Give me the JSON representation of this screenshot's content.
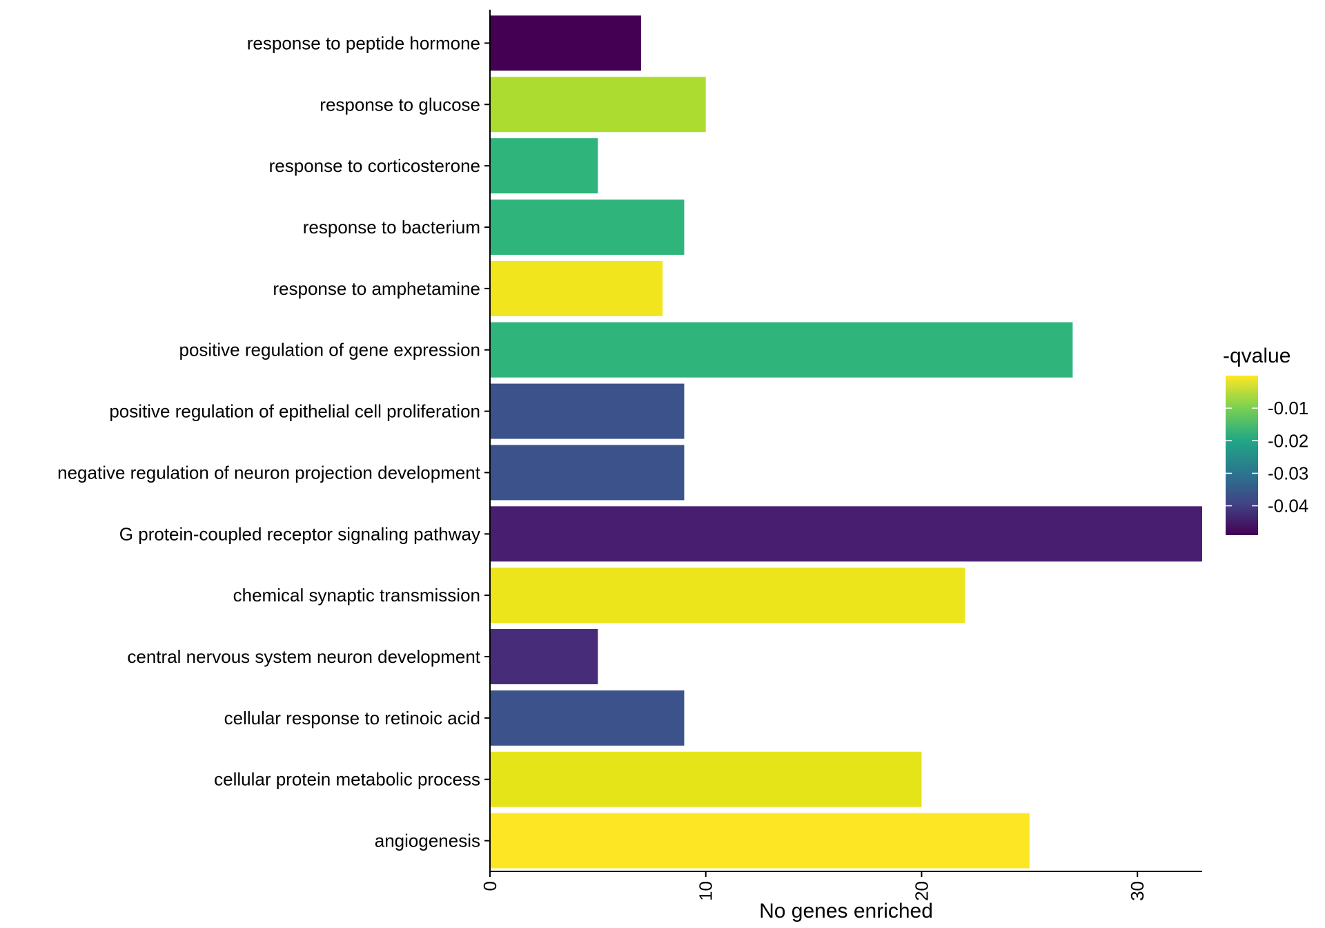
{
  "chart_data": {
    "type": "bar",
    "orientation": "horizontal",
    "categories": [
      "response to peptide hormone",
      "response to glucose",
      "response to corticosterone",
      "response to bacterium",
      "response to amphetamine",
      "positive regulation of gene expression",
      "positive regulation of epithelial cell proliferation",
      "negative regulation of neuron projection development",
      "G protein-coupled receptor signaling pathway",
      "chemical synaptic transmission",
      "central nervous system neuron development",
      "cellular response to retinoic acid",
      "cellular protein metabolic process",
      "angiogenesis"
    ],
    "values": [
      7,
      10,
      5,
      9,
      8,
      27,
      9,
      9,
      33,
      22,
      5,
      9,
      20,
      25
    ],
    "colors": [
      "#440154",
      "#addc30",
      "#2fb47c",
      "#2fb47c",
      "#f1e51d",
      "#2fb47c",
      "#3b528b",
      "#3b528b",
      "#481f70",
      "#ece51b",
      "#472c7a",
      "#3b528b",
      "#e5e419",
      "#fde725"
    ],
    "color_values": [
      -0.049,
      -0.012,
      -0.022,
      -0.022,
      -0.001,
      -0.022,
      -0.04,
      -0.04,
      -0.047,
      -0.002,
      -0.046,
      -0.04,
      -0.003,
      -0.0005
    ],
    "xlabel": "No genes enriched",
    "ylabel": "",
    "xlim": [
      0,
      33
    ],
    "xticks": [
      0,
      10,
      20,
      30
    ],
    "legend": {
      "title": "-qvalue",
      "placement": "right",
      "range": [
        -0.049,
        0
      ],
      "ticks": [
        -0.01,
        -0.02,
        -0.03,
        -0.04
      ],
      "tick_labels": [
        "-0.01",
        "-0.02",
        "-0.03",
        "-0.04"
      ],
      "colors": [
        "#fde725",
        "#7ad151",
        "#22a884",
        "#2a788e",
        "#414487",
        "#440154"
      ]
    },
    "grid": false
  }
}
